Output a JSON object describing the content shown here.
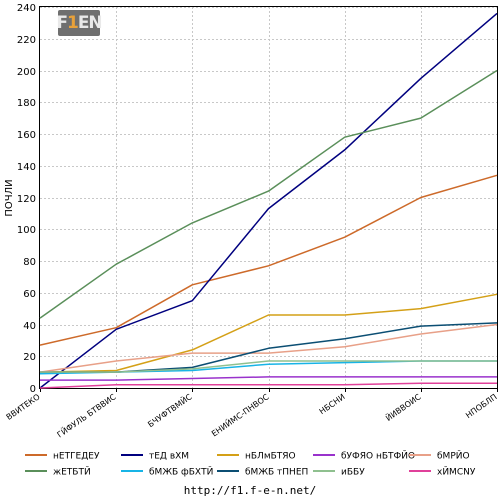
{
  "logo": {
    "part1": "F",
    "accent": "1",
    "part2": "EN"
  },
  "source_url": "http://f1.f-e-n.net/",
  "chart_data": {
    "type": "line",
    "title": "",
    "xlabel": "",
    "ylabel": "ПОЧЛИ",
    "ylim": [
      0,
      240
    ],
    "y_ticks": [
      0,
      20,
      40,
      60,
      80,
      100,
      120,
      140,
      160,
      180,
      200,
      220,
      240
    ],
    "grid": true,
    "legend_position": "bottom",
    "categories": [
      "ВВИТЕКО",
      "ГЙФУЛЬ БТВВИС",
      "БЧУФТВМЙС",
      "ЕНИЙМС-ПНВОС",
      "НБСНИ",
      "ЙИВВОИС",
      "НПОБЛП"
    ],
    "series": [
      {
        "name": "нЕТГЕДЕУ",
        "color": "#cd6a2a",
        "values": [
          27,
          38,
          65,
          77,
          95,
          120,
          134
        ]
      },
      {
        "name": "тЕД вХМ",
        "color": "#00007f",
        "values": [
          0,
          37,
          55,
          113,
          150,
          195,
          236
        ]
      },
      {
        "name": "нБЛмБТЯО",
        "color": "#d4a017",
        "values": [
          10,
          11,
          24,
          46,
          46,
          50,
          59
        ]
      },
      {
        "name": "бУФЯО нБТФЙО",
        "color": "#9932cc",
        "values": [
          5,
          5,
          6,
          7,
          7,
          7,
          7
        ]
      },
      {
        "name": "бМРЙО",
        "color": "#e8a088",
        "values": [
          10,
          17,
          22,
          22,
          26,
          34,
          40
        ]
      },
      {
        "name": "жЕТБТЙ",
        "color": "#5a8f5a",
        "values": [
          44,
          78,
          104,
          124,
          158,
          170,
          200
        ]
      },
      {
        "name": "бМЖБ фБХТЙ",
        "color": "#18b4e6",
        "values": [
          9,
          10,
          11,
          15,
          16,
          17,
          17
        ]
      },
      {
        "name": "бМЖБ тПНЕП",
        "color": "#0b4e73",
        "values": [
          10,
          10,
          13,
          25,
          31,
          39,
          41
        ]
      },
      {
        "name": "иББУ",
        "color": "#8fc08f",
        "values": [
          10,
          10,
          12,
          17,
          17,
          17,
          17
        ]
      },
      {
        "name": "хЙМСNУ",
        "color": "#e0409a",
        "values": [
          0,
          2,
          2,
          2,
          2,
          3,
          3
        ]
      }
    ]
  }
}
